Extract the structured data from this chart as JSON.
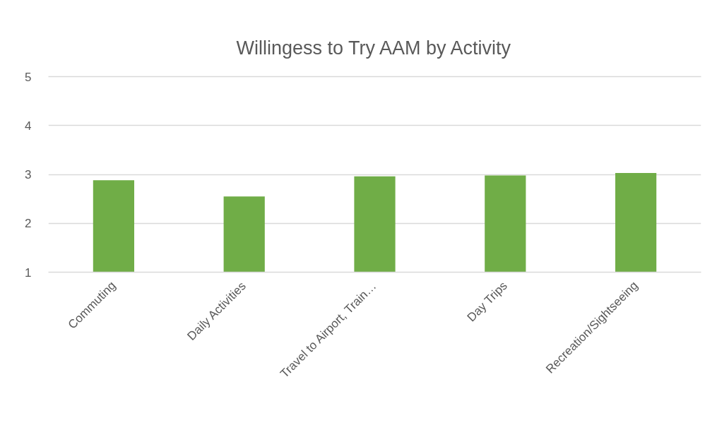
{
  "chart_data": {
    "type": "bar",
    "title": "Willingess to Try AAM by Activity",
    "categories": [
      "Commuting",
      "Daily Activities",
      "Travel to Airport, Train…",
      "Day Trips",
      "Recreation/Sightseeing"
    ],
    "values": [
      2.88,
      2.55,
      2.96,
      2.98,
      3.03
    ],
    "color": "#70ad47",
    "ylim": [
      1,
      5
    ],
    "yticks": [
      1,
      2,
      3,
      4,
      5
    ],
    "grid": "y"
  }
}
